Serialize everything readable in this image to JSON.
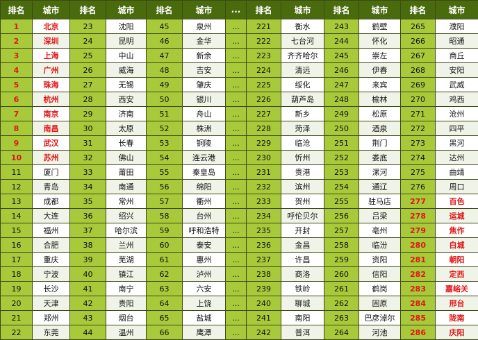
{
  "headers": [
    "排名",
    "城市",
    "排名",
    "城市",
    "排名",
    "城市",
    "...",
    "排名",
    "城市",
    "排名",
    "城市",
    "排名",
    "城市"
  ],
  "dots": "...",
  "rows": [
    {
      "c": [
        {
          "r": "1",
          "hl": true
        },
        {
          "t": "北京",
          "hl": true
        },
        {
          "r": "23"
        },
        {
          "t": "沈阳"
        },
        {
          "r": "45"
        },
        {
          "t": "泉州"
        },
        {
          "r": "221"
        },
        {
          "t": "衡水"
        },
        {
          "r": "243"
        },
        {
          "t": "鹤壁"
        },
        {
          "r": "265"
        },
        {
          "t": "濮阳"
        }
      ]
    },
    {
      "c": [
        {
          "r": "2",
          "hl": true
        },
        {
          "t": "深圳",
          "hl": true
        },
        {
          "r": "24"
        },
        {
          "t": "昆明"
        },
        {
          "r": "46"
        },
        {
          "t": "金华"
        },
        {
          "r": "222"
        },
        {
          "t": "七台河"
        },
        {
          "r": "244"
        },
        {
          "t": "怀化"
        },
        {
          "r": "266"
        },
        {
          "t": "昭通"
        }
      ]
    },
    {
      "c": [
        {
          "r": "3",
          "hl": true
        },
        {
          "t": "上海",
          "hl": true
        },
        {
          "r": "25"
        },
        {
          "t": "中山"
        },
        {
          "r": "47"
        },
        {
          "t": "新余"
        },
        {
          "r": "223"
        },
        {
          "t": "齐齐哈尔"
        },
        {
          "r": "245"
        },
        {
          "t": "崇左"
        },
        {
          "r": "267"
        },
        {
          "t": "商丘"
        }
      ]
    },
    {
      "c": [
        {
          "r": "4",
          "hl": true
        },
        {
          "t": "广州",
          "hl": true
        },
        {
          "r": "26"
        },
        {
          "t": "威海"
        },
        {
          "r": "48"
        },
        {
          "t": "吉安"
        },
        {
          "r": "224"
        },
        {
          "t": "清远"
        },
        {
          "r": "246"
        },
        {
          "t": "伊春"
        },
        {
          "r": "268"
        },
        {
          "t": "安阳"
        }
      ]
    },
    {
      "c": [
        {
          "r": "5",
          "hl": true
        },
        {
          "t": "珠海",
          "hl": true
        },
        {
          "r": "27"
        },
        {
          "t": "无锡"
        },
        {
          "r": "49"
        },
        {
          "t": "肇庆"
        },
        {
          "r": "225"
        },
        {
          "t": "绥化"
        },
        {
          "r": "247"
        },
        {
          "t": "来宾"
        },
        {
          "r": "269"
        },
        {
          "t": "武威"
        }
      ]
    },
    {
      "c": [
        {
          "r": "6",
          "hl": true
        },
        {
          "t": "杭州",
          "hl": true
        },
        {
          "r": "28"
        },
        {
          "t": "西安"
        },
        {
          "r": "50"
        },
        {
          "t": "银川"
        },
        {
          "r": "226"
        },
        {
          "t": "葫芦岛"
        },
        {
          "r": "248"
        },
        {
          "t": "榆林"
        },
        {
          "r": "270"
        },
        {
          "t": "鸡西"
        }
      ]
    },
    {
      "c": [
        {
          "r": "7",
          "hl": true
        },
        {
          "t": "南京",
          "hl": true
        },
        {
          "r": "29"
        },
        {
          "t": "济南"
        },
        {
          "r": "51"
        },
        {
          "t": "舟山"
        },
        {
          "r": "227"
        },
        {
          "t": "新乡"
        },
        {
          "r": "249"
        },
        {
          "t": "松原"
        },
        {
          "r": "271"
        },
        {
          "t": "沧州"
        }
      ]
    },
    {
      "c": [
        {
          "r": "8",
          "hl": true
        },
        {
          "t": "南昌",
          "hl": true
        },
        {
          "r": "30"
        },
        {
          "t": "太原"
        },
        {
          "r": "52"
        },
        {
          "t": "株洲"
        },
        {
          "r": "228"
        },
        {
          "t": "菏泽"
        },
        {
          "r": "250"
        },
        {
          "t": "酒泉"
        },
        {
          "r": "272"
        },
        {
          "t": "四平"
        }
      ]
    },
    {
      "c": [
        {
          "r": "9",
          "hl": true
        },
        {
          "t": "武汉",
          "hl": true
        },
        {
          "r": "31"
        },
        {
          "t": "长春"
        },
        {
          "r": "53"
        },
        {
          "t": "铜陵"
        },
        {
          "r": "229"
        },
        {
          "t": "临沧"
        },
        {
          "r": "251"
        },
        {
          "t": "荆门"
        },
        {
          "r": "273"
        },
        {
          "t": "黑河"
        }
      ]
    },
    {
      "c": [
        {
          "r": "10",
          "hl": true
        },
        {
          "t": "苏州",
          "hl": true
        },
        {
          "r": "32"
        },
        {
          "t": "佛山"
        },
        {
          "r": "54"
        },
        {
          "t": "连云港"
        },
        {
          "r": "230"
        },
        {
          "t": "忻州"
        },
        {
          "r": "252"
        },
        {
          "t": "娄底"
        },
        {
          "r": "274"
        },
        {
          "t": "达州"
        }
      ]
    },
    {
      "c": [
        {
          "r": "11"
        },
        {
          "t": "厦门"
        },
        {
          "r": "33"
        },
        {
          "t": "莆田"
        },
        {
          "r": "55"
        },
        {
          "t": "秦皇岛"
        },
        {
          "r": "231"
        },
        {
          "t": "贵港"
        },
        {
          "r": "253"
        },
        {
          "t": "漯河"
        },
        {
          "r": "275"
        },
        {
          "t": "曲靖"
        }
      ]
    },
    {
      "c": [
        {
          "r": "12"
        },
        {
          "t": "青岛"
        },
        {
          "r": "34"
        },
        {
          "t": "南通"
        },
        {
          "r": "56"
        },
        {
          "t": "绵阳"
        },
        {
          "r": "232"
        },
        {
          "t": "滨州"
        },
        {
          "r": "254"
        },
        {
          "t": "通辽"
        },
        {
          "r": "276"
        },
        {
          "t": "周口"
        }
      ]
    },
    {
      "c": [
        {
          "r": "13"
        },
        {
          "t": "成都"
        },
        {
          "r": "35"
        },
        {
          "t": "常州"
        },
        {
          "r": "57"
        },
        {
          "t": "衢州"
        },
        {
          "r": "233"
        },
        {
          "t": "贺州"
        },
        {
          "r": "255"
        },
        {
          "t": "驻马店"
        },
        {
          "r": "277",
          "hl": true
        },
        {
          "t": "百色",
          "hl": true
        }
      ]
    },
    {
      "c": [
        {
          "r": "14"
        },
        {
          "t": "大连"
        },
        {
          "r": "36"
        },
        {
          "t": "绍兴"
        },
        {
          "r": "58"
        },
        {
          "t": "台州"
        },
        {
          "r": "234"
        },
        {
          "t": "呼伦贝尔"
        },
        {
          "r": "256"
        },
        {
          "t": "吕梁"
        },
        {
          "r": "278",
          "hl": true
        },
        {
          "t": "运城",
          "hl": true
        }
      ]
    },
    {
      "c": [
        {
          "r": "15"
        },
        {
          "t": "福州"
        },
        {
          "r": "37"
        },
        {
          "t": "哈尔滨"
        },
        {
          "r": "59"
        },
        {
          "t": "呼和浩特"
        },
        {
          "r": "235"
        },
        {
          "t": "开封"
        },
        {
          "r": "257"
        },
        {
          "t": "亳州"
        },
        {
          "r": "279",
          "hl": true
        },
        {
          "t": "焦作",
          "hl": true
        }
      ]
    },
    {
      "c": [
        {
          "r": "16"
        },
        {
          "t": "合肥"
        },
        {
          "r": "38"
        },
        {
          "t": "兰州"
        },
        {
          "r": "60"
        },
        {
          "t": "泰安"
        },
        {
          "r": "236"
        },
        {
          "t": "金昌"
        },
        {
          "r": "258"
        },
        {
          "t": "临汾"
        },
        {
          "r": "280",
          "hl": true
        },
        {
          "t": "白城",
          "hl": true
        }
      ]
    },
    {
      "c": [
        {
          "r": "17"
        },
        {
          "t": "重庆"
        },
        {
          "r": "39"
        },
        {
          "t": "芜湖"
        },
        {
          "r": "61"
        },
        {
          "t": "惠州"
        },
        {
          "r": "237"
        },
        {
          "t": "许昌"
        },
        {
          "r": "259"
        },
        {
          "t": "资阳"
        },
        {
          "r": "281",
          "hl": true
        },
        {
          "t": "朝阳",
          "hl": true
        }
      ]
    },
    {
      "c": [
        {
          "r": "18"
        },
        {
          "t": "宁波"
        },
        {
          "r": "40"
        },
        {
          "t": "镇江"
        },
        {
          "r": "62"
        },
        {
          "t": "泸州"
        },
        {
          "r": "238"
        },
        {
          "t": "商洛"
        },
        {
          "r": "260"
        },
        {
          "t": "信阳"
        },
        {
          "r": "282",
          "hl": true
        },
        {
          "t": "定西",
          "hl": true
        }
      ]
    },
    {
      "c": [
        {
          "r": "19"
        },
        {
          "t": "长沙"
        },
        {
          "r": "41"
        },
        {
          "t": "南宁"
        },
        {
          "r": "63"
        },
        {
          "t": "六安"
        },
        {
          "r": "239"
        },
        {
          "t": "铁岭"
        },
        {
          "r": "261"
        },
        {
          "t": "鹤岗"
        },
        {
          "r": "283",
          "hl": true
        },
        {
          "t": "嘉峪关",
          "hl": true
        }
      ]
    },
    {
      "c": [
        {
          "r": "20"
        },
        {
          "t": "天津"
        },
        {
          "r": "42"
        },
        {
          "t": "贵阳"
        },
        {
          "r": "64"
        },
        {
          "t": "上饶"
        },
        {
          "r": "240"
        },
        {
          "t": "聊城"
        },
        {
          "r": "262"
        },
        {
          "t": "固原"
        },
        {
          "r": "284",
          "hl": true
        },
        {
          "t": "邢台",
          "hl": true
        }
      ]
    },
    {
      "c": [
        {
          "r": "21"
        },
        {
          "t": "郑州"
        },
        {
          "r": "43"
        },
        {
          "t": "烟台"
        },
        {
          "r": "65"
        },
        {
          "t": "盐城"
        },
        {
          "r": "241"
        },
        {
          "t": "南阳"
        },
        {
          "r": "263"
        },
        {
          "t": "巴彦淖尔"
        },
        {
          "r": "285",
          "hl": true
        },
        {
          "t": "陇南",
          "hl": true
        }
      ]
    },
    {
      "c": [
        {
          "r": "22"
        },
        {
          "t": "东莞"
        },
        {
          "r": "44"
        },
        {
          "t": "温州"
        },
        {
          "r": "66"
        },
        {
          "t": "鹰潭"
        },
        {
          "r": "242"
        },
        {
          "t": "普洱"
        },
        {
          "r": "264"
        },
        {
          "t": "河池"
        },
        {
          "r": "286",
          "hl": true
        },
        {
          "t": "庆阳",
          "hl": true
        }
      ]
    }
  ]
}
